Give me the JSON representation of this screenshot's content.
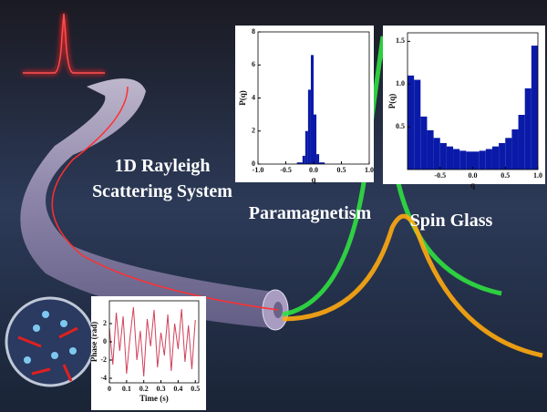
{
  "illustration": {
    "label_lines": [
      "1D Rayleigh",
      "Scattering System"
    ]
  },
  "chart_data": [
    {
      "type": "histogram",
      "title": "Paramagnetism",
      "xlabel": "q",
      "ylabel": "P(q)",
      "color": "#0a1aa8",
      "bins": [
        -1,
        -0.3,
        -0.2,
        -0.15,
        -0.1,
        -0.05,
        0,
        0.05,
        0.1,
        0.2,
        1
      ],
      "counts": [
        0,
        0.1,
        0.5,
        2.0,
        4.5,
        6.6,
        3.0,
        0.6,
        0.1,
        0
      ],
      "xlim": [
        -1,
        1
      ],
      "ylim": [
        0,
        8
      ],
      "xticks": [
        {
          "value": -1,
          "label": "-1.0"
        },
        {
          "value": -0.5,
          "label": "-0.5"
        },
        {
          "value": 0,
          "label": "0.0"
        },
        {
          "value": 0.5,
          "label": "0.5"
        },
        {
          "value": 1,
          "label": "1.0"
        }
      ],
      "yticks": [
        0,
        2,
        4,
        6,
        8
      ]
    },
    {
      "type": "histogram",
      "title": "Spin Glass",
      "xlabel": "q",
      "ylabel": "P(q)",
      "color": "#0a1aa8",
      "bins": [
        -1,
        -0.9,
        -0.8,
        -0.7,
        -0.6,
        -0.5,
        -0.4,
        -0.3,
        -0.2,
        -0.1,
        0,
        0.1,
        0.2,
        0.3,
        0.4,
        0.5,
        0.6,
        0.7,
        0.8,
        0.9,
        1
      ],
      "counts": [
        1.1,
        1.05,
        0.62,
        0.46,
        0.37,
        0.31,
        0.27,
        0.24,
        0.22,
        0.21,
        0.21,
        0.22,
        0.24,
        0.27,
        0.31,
        0.37,
        0.47,
        0.64,
        0.95,
        1.45
      ],
      "xlim": [
        -1,
        1
      ],
      "ylim": [
        0,
        1.6
      ],
      "xticks": [
        {
          "value": -0.5,
          "label": "-0.5"
        },
        {
          "value": 0,
          "label": "0.0"
        },
        {
          "value": 0.5,
          "label": "0.5"
        },
        {
          "value": 1,
          "label": "1.0"
        }
      ],
      "yticks": [
        {
          "value": 0.5,
          "label": "0.5"
        },
        {
          "value": 1,
          "label": "1.0"
        },
        {
          "value": 1.5,
          "label": "1.5"
        }
      ]
    },
    {
      "type": "line",
      "xlabel": "Time (s)",
      "ylabel": "Phase (rad)",
      "color": "#d0405a",
      "x": [
        0,
        0.02,
        0.04,
        0.06,
        0.08,
        0.1,
        0.12,
        0.14,
        0.16,
        0.18,
        0.2,
        0.22,
        0.24,
        0.26,
        0.28,
        0.3,
        0.32,
        0.34,
        0.36,
        0.38,
        0.4,
        0.42,
        0.44,
        0.46,
        0.48,
        0.5
      ],
      "values": [
        1.5,
        -2.5,
        3.2,
        -1,
        2.8,
        -3.5,
        0.5,
        3.8,
        -2,
        1.2,
        -3.8,
        2.5,
        -0.5,
        3.5,
        -2.8,
        1,
        -1.5,
        3,
        -3.2,
        2,
        -0.8,
        3.6,
        -2.2,
        1.8,
        -3,
        2.4
      ],
      "xlim": [
        0,
        0.52
      ],
      "ylim": [
        -4.5,
        4.5
      ],
      "xticks": [
        0,
        0.1,
        0.2,
        0.3,
        0.4,
        0.5
      ],
      "yticks": [
        -4,
        -2,
        0,
        2
      ]
    }
  ]
}
